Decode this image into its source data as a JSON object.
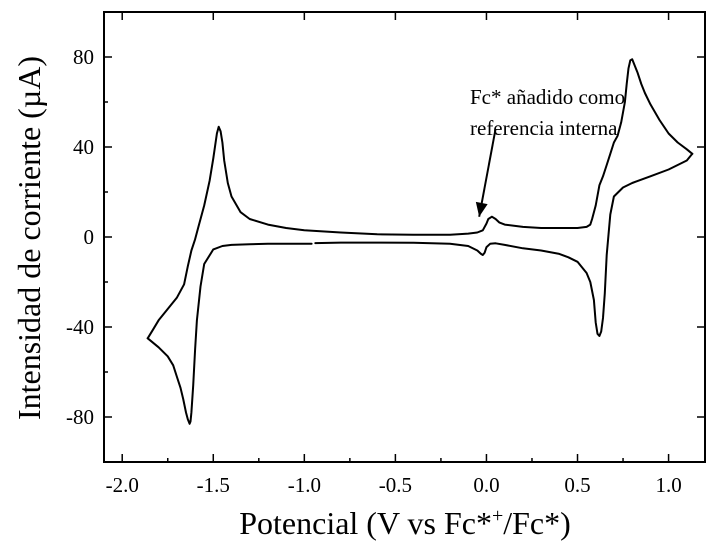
{
  "chart_data": {
    "type": "line",
    "xlabel": "Potencial (V vs Fc*",
    "xlabel_sup": "+",
    "xlabel_tail": "/Fc*)",
    "ylabel": "Intensidad de corriente (µA)",
    "xlim": [
      -2.1,
      1.2
    ],
    "ylim": [
      -100,
      100
    ],
    "xticks": [
      -2.0,
      -1.5,
      -1.0,
      -0.5,
      0.0,
      0.5,
      1.0
    ],
    "xtick_labels": [
      "-2.0",
      "-1.5",
      "-1.0",
      "-0.5",
      "0.0",
      "0.5",
      "1.0"
    ],
    "yticks": [
      -80,
      -40,
      0,
      40,
      80
    ],
    "ytick_labels": [
      "-80",
      "-40",
      "0",
      "40",
      "80"
    ],
    "grid": false,
    "annotation": {
      "lines": [
        "Fc* añadido como",
        "referencia interna"
      ],
      "arrow_from": [
        0.05,
        48
      ],
      "arrow_to": [
        -0.04,
        9
      ]
    },
    "series": [
      {
        "segments": [
          {
            "x": [
              -1.86,
              -1.8,
              -1.75,
              -1.72,
              -1.7,
              -1.68,
              -1.665,
              -1.65,
              -1.64,
              -1.63,
              -1.625,
              -1.62,
              -1.61,
              -1.6,
              -1.59,
              -1.57,
              -1.55,
              -1.5,
              -1.45,
              -1.4,
              -1.3,
              -1.2,
              -1.1,
              -1.0,
              -0.96
            ],
            "y": [
              -45,
              -49,
              -53,
              -57,
              -62,
              -67,
              -72,
              -78,
              -81,
              -83,
              -82,
              -78,
              -66,
              -50,
              -37,
              -22,
              -12,
              -5.5,
              -4,
              -3.5,
              -3.2,
              -3,
              -3,
              -3,
              -3
            ]
          },
          {
            "x": [
              -0.94,
              -0.8,
              -0.6,
              -0.4,
              -0.2,
              -0.1,
              -0.05,
              -0.03,
              -0.02,
              -0.01,
              0.0,
              0.02,
              0.05,
              0.1,
              0.2,
              0.3,
              0.4,
              0.45,
              0.5,
              0.55,
              0.57,
              0.59,
              0.6,
              0.61,
              0.62,
              0.63,
              0.64,
              0.65,
              0.66,
              0.68,
              0.7,
              0.75,
              0.8,
              0.9,
              1.0,
              1.1,
              1.13
            ],
            "y": [
              -2.7,
              -2.5,
              -2.5,
              -2.6,
              -3,
              -4,
              -6,
              -7.5,
              -8,
              -7,
              -4.5,
              -3,
              -2.8,
              -3.5,
              -5,
              -6,
              -7.5,
              -9,
              -11,
              -16,
              -20,
              -28,
              -38,
              -43,
              -44,
              -42,
              -36,
              -25,
              -8,
              10,
              18,
              22,
              24,
              27,
              30,
              34,
              37
            ]
          },
          {
            "x": [
              1.13,
              1.1,
              1.05,
              1.0,
              0.95,
              0.9,
              0.87,
              0.85,
              0.83,
              0.81,
              0.8,
              0.79,
              0.78,
              0.77,
              0.76,
              0.74,
              0.72,
              0.7,
              0.68,
              0.66,
              0.64,
              0.62,
              0.6,
              0.58,
              0.57,
              0.55,
              0.5,
              0.4,
              0.3,
              0.2,
              0.1,
              0.07,
              0.05,
              0.03,
              0.01,
              0.0,
              -0.02,
              -0.05,
              -0.1,
              -0.2,
              -0.4,
              -0.6,
              -0.8,
              -1.0,
              -1.1,
              -1.2,
              -1.3,
              -1.35,
              -1.4,
              -1.42,
              -1.44,
              -1.45,
              -1.46,
              -1.47,
              -1.48,
              -1.5,
              -1.52,
              -1.55,
              -1.58,
              -1.6,
              -1.62,
              -1.64,
              -1.66,
              -1.7,
              -1.75,
              -1.8,
              -1.83,
              -1.86
            ],
            "y": [
              37,
              39,
              42,
              46,
              52,
              59,
              64,
              68,
              73,
              77,
              79,
              78.5,
              75,
              68,
              60,
              51,
              45,
              42,
              37,
              32,
              27,
              23,
              14,
              8,
              5.5,
              4.5,
              4,
              4,
              4,
              4.5,
              5.5,
              6.5,
              8,
              9,
              8,
              6,
              3,
              2,
              1.5,
              1,
              1,
              1.2,
              2,
              3,
              4,
              5.5,
              8,
              11,
              18,
              24,
              34,
              42,
              47,
              49,
              46,
              35,
              25,
              14,
              5,
              -1,
              -6,
              -13,
              -21,
              -27,
              -32,
              -37,
              -41,
              -45
            ]
          }
        ]
      }
    ]
  }
}
